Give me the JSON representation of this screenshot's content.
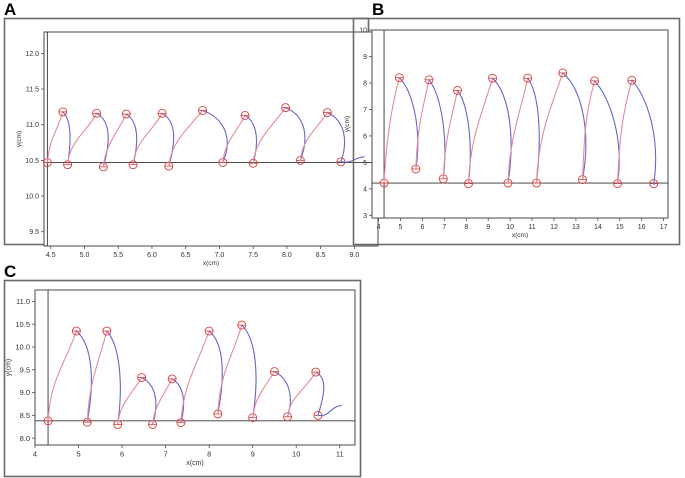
{
  "panels": [
    {
      "letter": "A"
    },
    {
      "letter": "B"
    },
    {
      "letter": "C"
    }
  ],
  "colors": {
    "plot_bg": "#ffffff",
    "frame_outer": "#6b6b6b",
    "axis": "#4a4a4a",
    "trace_down": "#6666cc",
    "trace_up": "#e58aa0",
    "marker": "#d9403d",
    "tick_text": "#333333",
    "baseline": "#333333"
  },
  "chart_data": [
    {
      "panel": "A",
      "type": "line",
      "title": "",
      "xlabel": "x(cm)",
      "ylabel": "y(cm)",
      "xlim": [
        4.4,
        9.35
      ],
      "ylim": [
        9.3,
        12.3
      ],
      "xticks": [
        "4.5",
        "5.0",
        "5.5",
        "6.0",
        "6.5",
        "7.0",
        "7.5",
        "8.0",
        "8.5",
        "9.0"
      ],
      "xtick_values": [
        4.5,
        5.0,
        5.5,
        6.0,
        6.5,
        7.0,
        7.5,
        8.0,
        8.5,
        9.0
      ],
      "yticks": [
        "9.5",
        "10.0",
        "10.5",
        "11.0",
        "11.5",
        "12.0"
      ],
      "ytick_values": [
        9.5,
        10.0,
        10.5,
        11.0,
        11.5,
        12.0
      ],
      "baseline_y": 10.47,
      "start": [
        4.45,
        10.47
      ],
      "end": [
        9.15,
        10.55
      ],
      "grid": false,
      "legend": "none",
      "loops": [
        {
          "apex": [
            4.68,
            11.18
          ],
          "low": [
            4.75,
            10.44
          ]
        },
        {
          "apex": [
            5.18,
            11.16
          ],
          "low": [
            5.28,
            10.41
          ]
        },
        {
          "apex": [
            5.62,
            11.15
          ],
          "low": [
            5.72,
            10.44
          ]
        },
        {
          "apex": [
            6.15,
            11.16
          ],
          "low": [
            6.25,
            10.42
          ]
        },
        {
          "apex": [
            6.75,
            11.2
          ],
          "low": [
            7.05,
            10.47
          ]
        },
        {
          "apex": [
            7.38,
            11.13
          ],
          "low": [
            7.5,
            10.46
          ]
        },
        {
          "apex": [
            7.98,
            11.24
          ],
          "low": [
            8.2,
            10.5
          ]
        },
        {
          "apex": [
            8.6,
            11.17
          ],
          "low": [
            8.8,
            10.48
          ]
        }
      ]
    },
    {
      "panel": "B",
      "type": "line",
      "title": "",
      "xlabel": "x(cm)",
      "ylabel": "y(cm)",
      "xlim": [
        3.7,
        17.2
      ],
      "ylim": [
        2.9,
        10.0
      ],
      "xticks": [
        "4",
        "5",
        "6",
        "7",
        "8",
        "9",
        "10",
        "11",
        "12",
        "13",
        "14",
        "15",
        "16",
        "17"
      ],
      "xtick_values": [
        4,
        5,
        6,
        7,
        8,
        9,
        10,
        11,
        12,
        13,
        14,
        15,
        16,
        17
      ],
      "yticks": [
        "3",
        "4",
        "5",
        "6",
        "7",
        "8",
        "9",
        "10"
      ],
      "ytick_values": [
        3,
        4,
        5,
        6,
        7,
        8,
        9,
        10
      ],
      "baseline_y": 4.22,
      "start": [
        4.25,
        4.22
      ],
      "end": [
        16.6,
        4.22
      ],
      "grid": false,
      "legend": "none",
      "loops": [
        {
          "apex": [
            4.95,
            8.2
          ],
          "low": [
            5.7,
            4.75
          ]
        },
        {
          "apex": [
            6.3,
            8.12
          ],
          "low": [
            6.95,
            4.38
          ]
        },
        {
          "apex": [
            7.6,
            7.72
          ],
          "low": [
            8.1,
            4.2
          ]
        },
        {
          "apex": [
            9.2,
            8.18
          ],
          "low": [
            9.9,
            4.22
          ]
        },
        {
          "apex": [
            10.8,
            8.18
          ],
          "low": [
            11.2,
            4.22
          ]
        },
        {
          "apex": [
            12.4,
            8.38
          ],
          "low": [
            13.3,
            4.35
          ]
        },
        {
          "apex": [
            13.85,
            8.08
          ],
          "low": [
            14.9,
            4.2
          ]
        },
        {
          "apex": [
            15.55,
            8.1
          ],
          "low": [
            16.55,
            4.2
          ]
        }
      ]
    },
    {
      "panel": "C",
      "type": "line",
      "title": "",
      "xlabel": "x(cm)",
      "ylabel": "y(cm)",
      "xlim": [
        4.0,
        11.35
      ],
      "ylim": [
        7.85,
        11.25
      ],
      "xticks": [
        "4",
        "5",
        "6",
        "7",
        "8",
        "9",
        "10",
        "11"
      ],
      "xtick_values": [
        4,
        5,
        6,
        7,
        8,
        9,
        10,
        11
      ],
      "yticks": [
        "8.0",
        "8.5",
        "9.0",
        "9.5",
        "10.0",
        "10.5",
        "11.0"
      ],
      "ytick_values": [
        8.0,
        8.5,
        9.0,
        9.5,
        10.0,
        10.5,
        11.0
      ],
      "baseline_y": 8.38,
      "start": [
        4.3,
        8.38
      ],
      "end": [
        11.05,
        8.72
      ],
      "grid": false,
      "legend": "none",
      "loops": [
        {
          "apex": [
            4.95,
            10.35
          ],
          "low": [
            5.2,
            8.35
          ]
        },
        {
          "apex": [
            5.65,
            10.35
          ],
          "low": [
            5.9,
            8.3
          ]
        },
        {
          "apex": [
            6.45,
            9.33
          ],
          "low": [
            6.7,
            8.3
          ]
        },
        {
          "apex": [
            7.15,
            9.3
          ],
          "low": [
            7.35,
            8.34
          ]
        },
        {
          "apex": [
            8.0,
            10.35
          ],
          "low": [
            8.2,
            8.53
          ]
        },
        {
          "apex": [
            8.75,
            10.48
          ],
          "low": [
            9.0,
            8.45
          ]
        },
        {
          "apex": [
            9.5,
            9.46
          ],
          "low": [
            9.8,
            8.47
          ]
        },
        {
          "apex": [
            10.45,
            9.45
          ],
          "low": [
            10.5,
            8.5
          ]
        }
      ]
    }
  ]
}
